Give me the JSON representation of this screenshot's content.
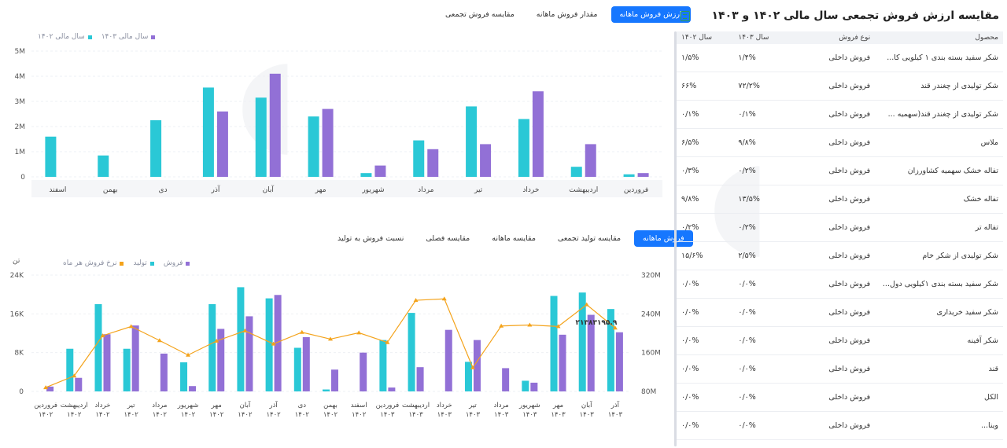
{
  "top": {
    "tabs": [
      {
        "label": "ارزش فروش ماهانه",
        "active": true
      },
      {
        "label": "مقدار فروش ماهانه",
        "active": false
      },
      {
        "label": "مقایسه فروش تجمعی",
        "active": false
      }
    ]
  },
  "bottom": {
    "tabs": [
      {
        "label": "فروش ماهانه",
        "active": true
      },
      {
        "label": "مقایسه تولید تجمعی",
        "active": false
      },
      {
        "label": "مقایسه ماهانه",
        "active": false
      },
      {
        "label": "مقایسه فصلی",
        "active": false
      },
      {
        "label": "نسبت فروش به تولید",
        "active": false
      }
    ],
    "left_unit": "تن",
    "tooltip_value": "۲۱۳۸۳۱۹۵.۹"
  },
  "colors": {
    "teal": "#2ac8d6",
    "purple": "#9270d6",
    "orange": "#f4a31b",
    "accent": "#1677ff"
  },
  "chart_data": [
    {
      "type": "bar",
      "legend": [
        {
          "name": "سال مالی ۱۴۰۳",
          "color": "#9270d6"
        },
        {
          "name": "سال مالی ۱۴۰۲",
          "color": "#2ac8d6"
        }
      ],
      "categories": [
        "فروردین",
        "اردیبهشت",
        "خرداد",
        "تیر",
        "مرداد",
        "شهریور",
        "مهر",
        "آبان",
        "آذر",
        "دی",
        "بهمن",
        "اسفند"
      ],
      "series": [
        {
          "name": "سال مالی ۱۴۰۲",
          "color": "#2ac8d6",
          "values": [
            0.1,
            0.4,
            2.3,
            2.8,
            1.45,
            0.15,
            2.4,
            3.15,
            3.55,
            2.25,
            0.85,
            1.6
          ]
        },
        {
          "name": "سال مالی ۱۴۰۳",
          "color": "#9270d6",
          "values": [
            0.15,
            1.3,
            3.4,
            1.3,
            1.1,
            0.45,
            2.7,
            4.1,
            2.6,
            null,
            null,
            null
          ]
        }
      ],
      "ylim": [
        0,
        5
      ],
      "yticks": [
        "0",
        "1M",
        "2M",
        "3M",
        "4M",
        "5M"
      ]
    },
    {
      "type": "bar",
      "legend": [
        {
          "name": "فروش",
          "color": "#9270d6"
        },
        {
          "name": "تولید",
          "color": "#2ac8d6"
        },
        {
          "name": "نرخ فروش هر ماه",
          "color": "#f4a31b"
        }
      ],
      "categories": [
        [
          "فروردین",
          "۱۴۰۲"
        ],
        [
          "اردیبهشت",
          "۱۴۰۲"
        ],
        [
          "خرداد",
          "۱۴۰۲"
        ],
        [
          "تیر",
          "۱۴۰۲"
        ],
        [
          "مرداد",
          "۱۴۰۲"
        ],
        [
          "شهریور",
          "۱۴۰۲"
        ],
        [
          "مهر",
          "۱۴۰۲"
        ],
        [
          "آبان",
          "۱۴۰۲"
        ],
        [
          "آذر",
          "۱۴۰۲"
        ],
        [
          "دی",
          "۱۴۰۲"
        ],
        [
          "بهمن",
          "۱۴۰۲"
        ],
        [
          "اسفند",
          "۱۴۰۲"
        ],
        [
          "فروردین",
          "۱۴۰۳"
        ],
        [
          "اردیبهشت",
          "۱۴۰۳"
        ],
        [
          "خرداد",
          "۱۴۰۳"
        ],
        [
          "تیر",
          "۱۴۰۳"
        ],
        [
          "مرداد",
          "۱۴۰۳"
        ],
        [
          "شهریور",
          "۱۴۰۳"
        ],
        [
          "مهر",
          "۱۴۰۳"
        ],
        [
          "آبان",
          "۱۴۰۳"
        ],
        [
          "آذر",
          "۱۴۰۳"
        ]
      ],
      "series": [
        {
          "name": "تولید",
          "color": "#2ac8d6",
          "axis": "left",
          "values": [
            0,
            8.8,
            18,
            8.8,
            0,
            6,
            18,
            21.5,
            19.2,
            9,
            0.4,
            0,
            10.6,
            16.2,
            0,
            6.1,
            0,
            2.2,
            19.7,
            20.4,
            17
          ]
        },
        {
          "name": "فروش",
          "color": "#9270d6",
          "axis": "left",
          "values": [
            1,
            2.8,
            11.8,
            13.6,
            7.8,
            1.1,
            12.9,
            15.5,
            19.9,
            11.2,
            4.5,
            8,
            0.8,
            5,
            12.7,
            10.6,
            4.8,
            1.8,
            11.7,
            15.8,
            12.2
          ]
        },
        {
          "name": "نرخ فروش هر ماه",
          "color": "#f4a31b",
          "axis": "right",
          "type": "line",
          "values": [
            88,
            112,
            195,
            214,
            185,
            155,
            184,
            205,
            178,
            202,
            188,
            201,
            181,
            268,
            271,
            129,
            215,
            217,
            214,
            259,
            211
          ]
        }
      ],
      "ylim_left": [
        0,
        24
      ],
      "yticks_left": [
        "0",
        "8K",
        "16K",
        "24K"
      ],
      "ylim_right": [
        80,
        320
      ],
      "yticks_right": [
        "80M",
        "160M",
        "240M",
        "320M"
      ]
    }
  ],
  "table": {
    "title": "مقایسه ارزش فروش تجمعی سال مالی ۱۴۰۲ و ۱۴۰۳",
    "headers": [
      "محصول",
      "نوع فروش",
      "سال ۱۴۰۳",
      "سال ۱۴۰۲"
    ],
    "rows": [
      [
        "شکر سفید بسته بندی ۱ کیلویی کا...",
        "فروش داخلی",
        "۱/۴%",
        "۱/۵%"
      ],
      [
        "شکر تولیدی از چغندر قند",
        "فروش داخلی",
        "۷۲/۲%",
        "۶۶%"
      ],
      [
        "شکر تولیدی از چغندر قند(سهمیه ...",
        "فروش داخلی",
        "۰/۱%",
        "۰/۱%"
      ],
      [
        "ملاس",
        "فروش داخلی",
        "۹/۸%",
        "۶/۵%"
      ],
      [
        "تفاله خشک سهمیه کشاورزان",
        "فروش داخلی",
        "۰/۲%",
        "۰/۳%"
      ],
      [
        "تفاله خشک",
        "فروش داخلی",
        "۱۳/۵%",
        "۹/۸%"
      ],
      [
        "تفاله تر",
        "فروش داخلی",
        "۰/۲%",
        "۰/۲%"
      ],
      [
        "شکر تولیدی از شکر خام",
        "فروش داخلی",
        "۲/۵%",
        "۱۵/۶%"
      ],
      [
        "شکر سفید بسته بندی ۱کیلویی دول...",
        "فروش داخلی",
        "۰/۰%",
        "۰/۰%"
      ],
      [
        "شکر سفید خریداری",
        "فروش داخلی",
        "۰/۰%",
        "۰/۰%"
      ],
      [
        "شکر آفینه",
        "فروش داخلی",
        "۰/۰%",
        "۰/۰%"
      ],
      [
        "قند",
        "فروش داخلی",
        "۰/۰%",
        "۰/۰%"
      ],
      [
        "الکل",
        "فروش داخلی",
        "۰/۰%",
        "۰/۰%"
      ],
      [
        "وینا...",
        "فروش داخلی",
        "۰/۰%",
        "۰/۰%"
      ]
    ]
  }
}
